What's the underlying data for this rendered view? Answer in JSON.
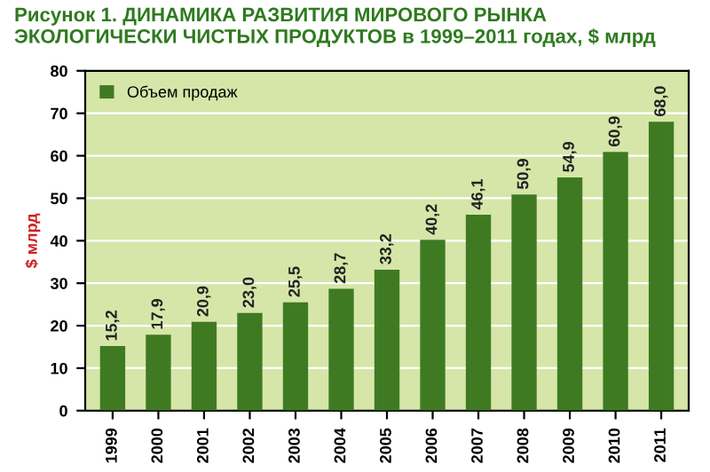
{
  "chart_data": {
    "type": "bar",
    "title": "Рисунок 1. ДИНАМИКА РАЗВИТИЯ МИРОВОГО РЫНКА ЭКОЛОГИЧЕСКИ ЧИСТЫХ ПРОДУКТОВ в 1999–2011 годах, $ млрд",
    "ylabel": "$ млрд",
    "categories": [
      "1999",
      "2000",
      "2001",
      "2002",
      "2003",
      "2004",
      "2005",
      "2006",
      "2007",
      "2008",
      "2009",
      "2010",
      "2011"
    ],
    "series": [
      {
        "name": "Объем продаж",
        "color": "#3f7a22",
        "values": [
          15.2,
          17.9,
          20.9,
          23.0,
          25.5,
          28.7,
          33.2,
          40.2,
          46.1,
          50.9,
          54.9,
          60.9,
          68.0
        ]
      }
    ],
    "value_labels": [
      "15,2",
      "17,9",
      "20,9",
      "23,0",
      "25,5",
      "28,7",
      "33,2",
      "40,2",
      "46,1",
      "50,9",
      "54,9",
      "60,9",
      "68,0"
    ],
    "ylim": [
      0,
      80
    ],
    "yticks": [
      0,
      10,
      20,
      30,
      40,
      50,
      60,
      70,
      80
    ],
    "grid": "y",
    "legend": "top left"
  }
}
